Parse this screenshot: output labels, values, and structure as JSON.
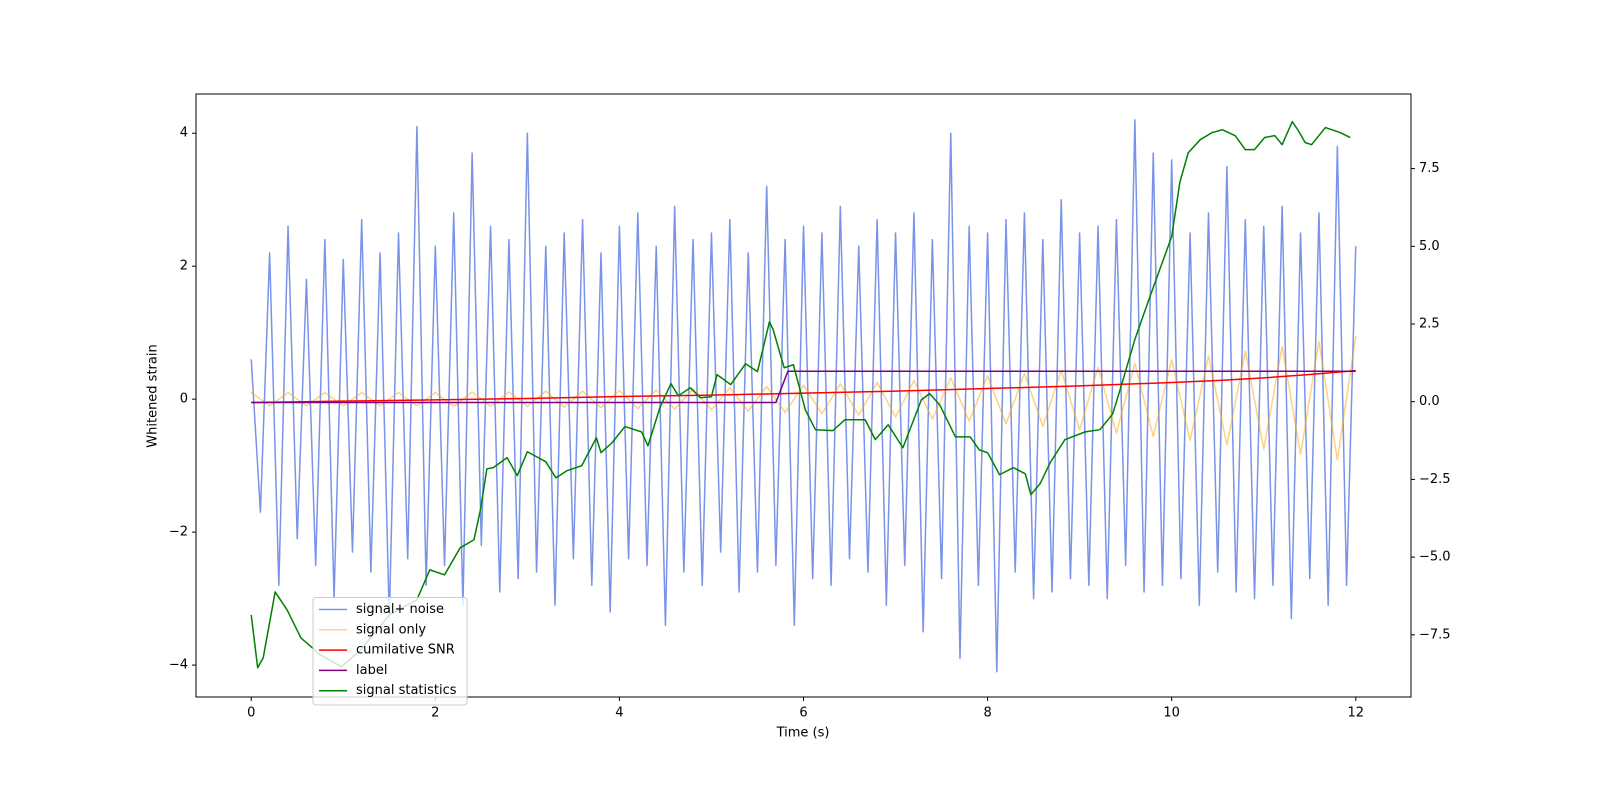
{
  "chart_data": {
    "type": "line",
    "xlabel": "Time (s)",
    "ylabel": "Whitened strain",
    "xlim": [
      -0.6,
      12.6
    ],
    "ylim": [
      -4.48,
      4.59
    ],
    "y2lim": [
      -9.5,
      9.9
    ],
    "xticks": [
      0,
      2,
      4,
      6,
      8,
      10,
      12
    ],
    "yticks": [
      {
        "value": -4,
        "label": "−4"
      },
      {
        "value": -2,
        "label": "−2"
      },
      0,
      2,
      4
    ],
    "y2ticks": [
      {
        "value": -7.5,
        "label": "−7.5"
      },
      {
        "value": -5,
        "label": "−5.0"
      },
      {
        "value": -2.5,
        "label": "−2.5"
      },
      {
        "value": 0,
        "label": "0.0"
      },
      2.5,
      {
        "value": 5,
        "label": "5.0"
      },
      7.5
    ],
    "legend": "lower left",
    "grid": false,
    "series": [
      {
        "name": "signal+ noise",
        "color": "#7893e8",
        "alpha": 1,
        "x": [
          0,
          0.1,
          0.2,
          0.3,
          0.4,
          0.5,
          0.6,
          0.7,
          0.8,
          0.9,
          1,
          1.1,
          1.2,
          1.3,
          1.4,
          1.5,
          1.6,
          1.7,
          1.8,
          1.9,
          2,
          2.1,
          2.2,
          2.3,
          2.4,
          2.5,
          2.6,
          2.7,
          2.8,
          2.9,
          3,
          3.1,
          3.2,
          3.3,
          3.4,
          3.5,
          3.6,
          3.7,
          3.8,
          3.9,
          4,
          4.1,
          4.2,
          4.3,
          4.4,
          4.5,
          4.6,
          4.7,
          4.8,
          4.9,
          5,
          5.1,
          5.2,
          5.3,
          5.4,
          5.5,
          5.6,
          5.7,
          5.8,
          5.9,
          6,
          6.1,
          6.2,
          6.3,
          6.4,
          6.5,
          6.6,
          6.7,
          6.8,
          6.9,
          7,
          7.1,
          7.2,
          7.3,
          7.4,
          7.5,
          7.6,
          7.7,
          7.8,
          7.9,
          8,
          8.1,
          8.2,
          8.3,
          8.4,
          8.5,
          8.6,
          8.7,
          8.8,
          8.9,
          9,
          9.1,
          9.2,
          9.3,
          9.4,
          9.5,
          9.6,
          9.7,
          9.8,
          9.9,
          10,
          10.1,
          10.2,
          10.3,
          10.4,
          10.5,
          10.6,
          10.7,
          10.8,
          10.9,
          11,
          11.1,
          11.2,
          11.3,
          11.4,
          11.5,
          11.6,
          11.7,
          11.8,
          11.9,
          12
        ],
        "values": [
          0.6,
          -1.7,
          2.2,
          -2.8,
          2.6,
          -2.1,
          1.8,
          -2.5,
          2.4,
          -3.0,
          2.1,
          -2.3,
          2.7,
          -2.6,
          2.2,
          -3.3,
          2.5,
          -2.4,
          4.1,
          -2.8,
          2.3,
          -2.5,
          2.8,
          -3.1,
          3.7,
          -2.2,
          2.6,
          -2.9,
          2.4,
          -2.7,
          4.0,
          -2.6,
          2.3,
          -3.1,
          2.5,
          -2.4,
          2.7,
          -2.8,
          2.2,
          -3.2,
          2.6,
          -2.4,
          2.8,
          -2.5,
          2.3,
          -3.4,
          2.9,
          -2.6,
          2.4,
          -2.8,
          2.5,
          -2.3,
          2.7,
          -2.9,
          2.2,
          -2.6,
          3.2,
          -2.5,
          2.4,
          -3.4,
          2.6,
          -2.7,
          2.5,
          -2.8,
          2.9,
          -2.4,
          2.3,
          -2.6,
          2.7,
          -3.1,
          2.5,
          -2.5,
          2.8,
          -3.5,
          2.4,
          -2.7,
          4.0,
          -3.9,
          2.6,
          -2.8,
          2.5,
          -4.1,
          2.7,
          -2.6,
          2.8,
          -3.0,
          2.4,
          -2.9,
          3.0,
          -2.7,
          2.5,
          -2.8,
          2.6,
          -3.0,
          2.7,
          -2.5,
          4.2,
          -2.9,
          3.7,
          -2.8,
          3.6,
          -2.7,
          2.5,
          -3.1,
          2.8,
          -2.6,
          3.5,
          -2.9,
          2.7,
          -3.0,
          2.6,
          -2.8,
          2.9,
          -3.3,
          2.5,
          -2.7,
          2.8,
          -3.1,
          3.8,
          -2.8,
          2.3
        ]
      },
      {
        "name": "signal only",
        "color": "#ffa500",
        "alpha": 0.5,
        "x": [
          0,
          0.2,
          0.4,
          0.6,
          0.8,
          1,
          1.2,
          1.4,
          1.6,
          1.8,
          2,
          2.2,
          2.4,
          2.6,
          2.8,
          3,
          3.2,
          3.4,
          3.6,
          3.8,
          4,
          4.2,
          4.4,
          4.6,
          4.8,
          5,
          5.2,
          5.4,
          5.6,
          5.8,
          6,
          6.2,
          6.4,
          6.6,
          6.8,
          7,
          7.2,
          7.4,
          7.6,
          7.8,
          8,
          8.2,
          8.4,
          8.6,
          8.8,
          9,
          9.2,
          9.4,
          9.6,
          9.8,
          10,
          10.2,
          10.4,
          10.6,
          10.8,
          11,
          11.2,
          11.4,
          11.6,
          11.8,
          12
        ],
        "values": [
          0.1,
          -0.1,
          0.1,
          -0.1,
          0.1,
          -0.1,
          0.1,
          -0.1,
          0.1,
          -0.1,
          0.1,
          -0.11,
          0.11,
          -0.11,
          0.11,
          -0.11,
          0.12,
          -0.12,
          0.12,
          -0.13,
          0.13,
          -0.14,
          0.14,
          -0.15,
          0.15,
          -0.16,
          0.17,
          -0.18,
          0.19,
          -0.2,
          0.21,
          -0.22,
          0.23,
          -0.24,
          0.25,
          -0.27,
          0.28,
          -0.3,
          0.32,
          -0.33,
          0.35,
          -0.37,
          0.39,
          -0.41,
          0.43,
          -0.46,
          0.48,
          -0.51,
          0.54,
          -0.56,
          0.59,
          -0.62,
          0.65,
          -0.69,
          0.72,
          -0.75,
          0.79,
          -0.83,
          0.87,
          -0.91,
          0.95
        ]
      },
      {
        "name": "cumilative SNR",
        "color": "#ff0000",
        "alpha": 1,
        "x": [
          0,
          1,
          2,
          3,
          4,
          5,
          6,
          7,
          8,
          9,
          10,
          10.5,
          11,
          11.5,
          12
        ],
        "values": [
          -0.05,
          -0.03,
          -0.01,
          0.01,
          0.04,
          0.06,
          0.09,
          0.12,
          0.16,
          0.2,
          0.25,
          0.28,
          0.32,
          0.37,
          0.43
        ]
      },
      {
        "name": "label",
        "color": "#800080",
        "alpha": 1,
        "x": [
          0,
          5.7,
          5.83,
          12
        ],
        "values": [
          -0.05,
          -0.05,
          0.42,
          0.42
        ]
      },
      {
        "name": "signal statistics",
        "color": "#008000",
        "alpha": 1,
        "axis": "y2",
        "x": [
          0,
          0.07,
          0.13,
          0.26,
          0.39,
          0.54,
          0.75,
          0.98,
          1.19,
          1.5,
          1.8,
          1.94,
          2.1,
          2.27,
          2.42,
          2.49,
          2.56,
          2.63,
          2.78,
          2.89,
          3.0,
          3.2,
          3.31,
          3.43,
          3.59,
          3.75,
          3.8,
          3.92,
          4.06,
          4.24,
          4.31,
          4.44,
          4.56,
          4.64,
          4.77,
          4.88,
          5.0,
          5.06,
          5.21,
          5.37,
          5.5,
          5.63,
          5.67,
          5.79,
          5.89,
          6.02,
          6.13,
          6.32,
          6.45,
          6.67,
          6.78,
          6.92,
          7.08,
          7.28,
          7.37,
          7.48,
          7.65,
          7.81,
          7.91,
          8.0,
          8.13,
          8.28,
          8.41,
          8.47,
          8.57,
          8.68,
          8.84,
          9.06,
          9.22,
          9.36,
          9.44,
          9.6,
          9.76,
          9.87,
          10.0,
          10.09,
          10.18,
          10.31,
          10.44,
          10.55,
          10.69,
          10.8,
          10.9,
          11.01,
          11.12,
          11.2,
          11.31,
          11.37,
          11.45,
          11.52,
          11.67,
          11.83,
          11.94
        ],
        "values": [
          -6.86,
          -8.56,
          -8.24,
          -6.12,
          -6.7,
          -7.6,
          -8.14,
          -8.53,
          -7.98,
          -6.86,
          -6.37,
          -5.41,
          -5.57,
          -4.7,
          -4.44,
          -3.48,
          -2.16,
          -2.12,
          -1.8,
          -2.38,
          -1.61,
          -1.93,
          -2.45,
          -2.22,
          -2.06,
          -1.16,
          -1.64,
          -1.32,
          -0.8,
          -0.97,
          -1.42,
          -0.19,
          0.58,
          0.19,
          0.45,
          0.13,
          0.16,
          0.87,
          0.55,
          1.22,
          0.97,
          2.57,
          2.32,
          1.09,
          1.19,
          -0.26,
          -0.9,
          -0.93,
          -0.58,
          -0.58,
          -1.22,
          -0.74,
          -1.48,
          0.06,
          0.26,
          -0.1,
          -1.13,
          -1.13,
          -1.55,
          -1.64,
          -2.35,
          -2.12,
          -2.32,
          -2.99,
          -2.64,
          -1.96,
          -1.22,
          -0.97,
          -0.9,
          -0.39,
          0.39,
          2.0,
          3.35,
          4.25,
          5.31,
          7.08,
          8.01,
          8.43,
          8.66,
          8.75,
          8.56,
          8.11,
          8.11,
          8.5,
          8.56,
          8.27,
          9.01,
          8.75,
          8.34,
          8.27,
          8.82,
          8.66,
          8.5
        ]
      }
    ]
  }
}
